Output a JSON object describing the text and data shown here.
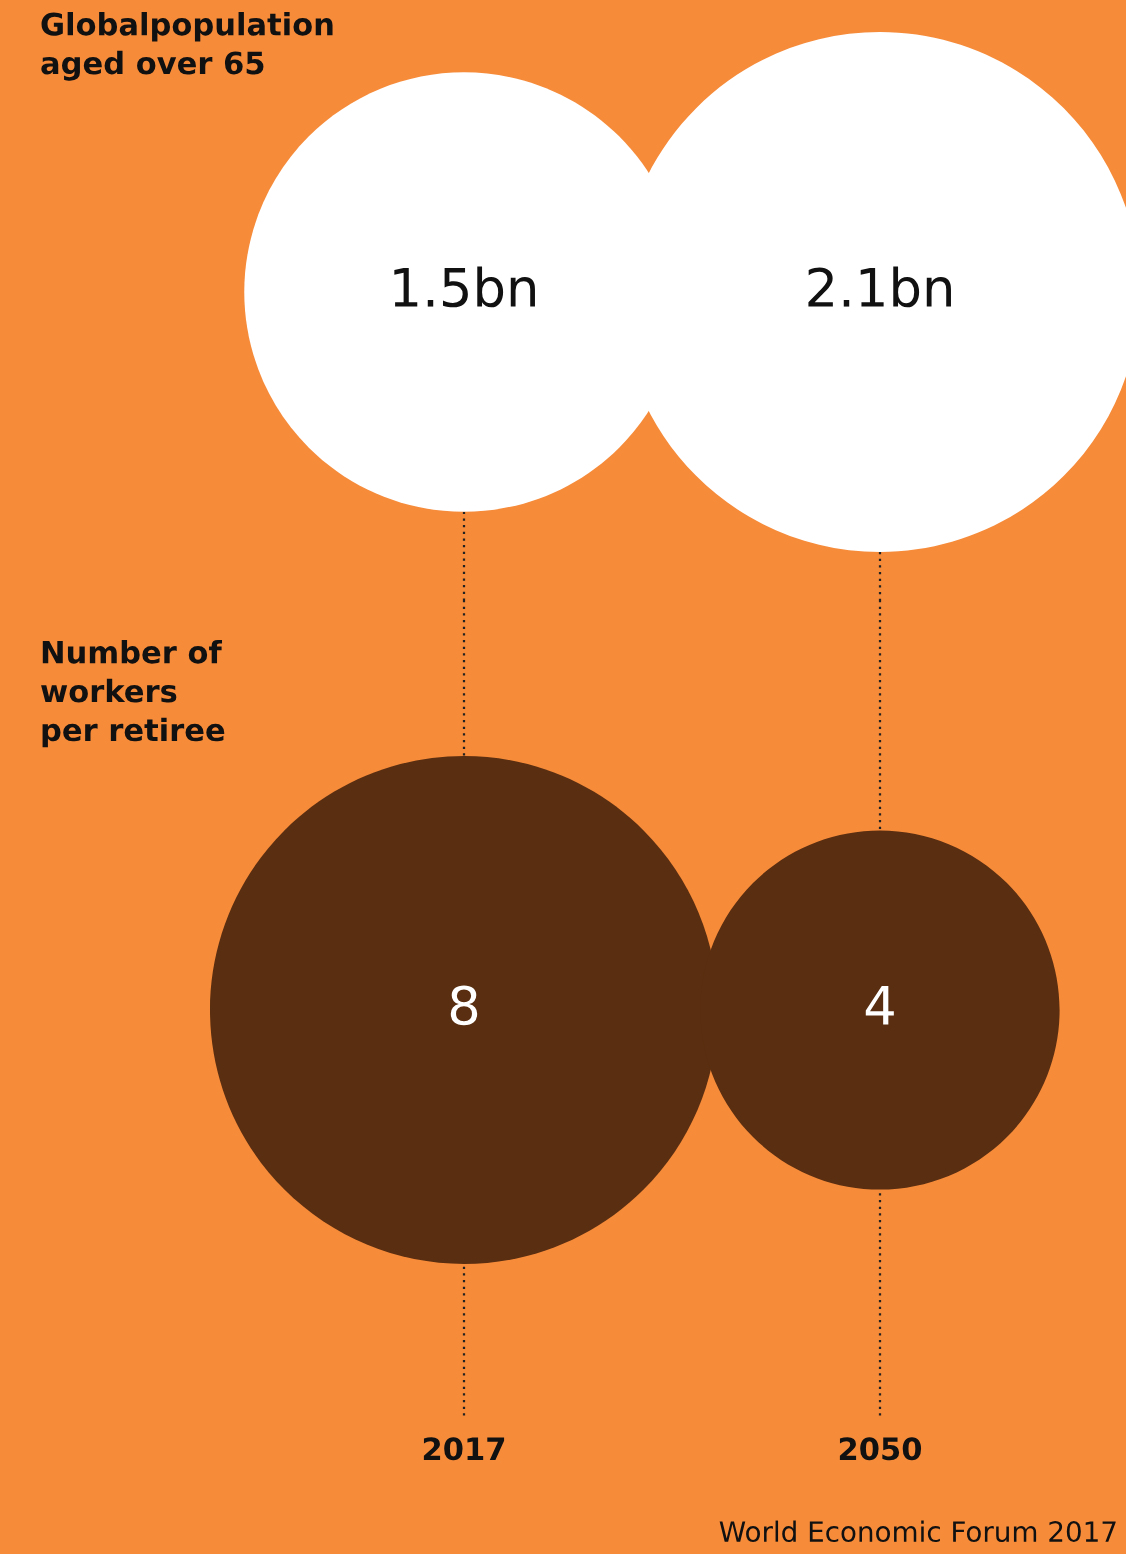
{
  "chart_data": [
    {
      "type": "other",
      "title": "Globalpopulation\naged over 65",
      "categories": [
        null,
        null
      ],
      "values": [
        1.5,
        2.1
      ],
      "value_labels": [
        "1.5bn",
        "2.1bn"
      ],
      "color": "#ffffff"
    },
    {
      "type": "other",
      "title": "Number of\nworkers\nper retiree",
      "categories": [
        "2017",
        "2050"
      ],
      "values": [
        8,
        4
      ],
      "data_labels": true,
      "color": "#5a2e10",
      "annotations": [
        "World Economic Forum 2017"
      ]
    }
  ]
}
